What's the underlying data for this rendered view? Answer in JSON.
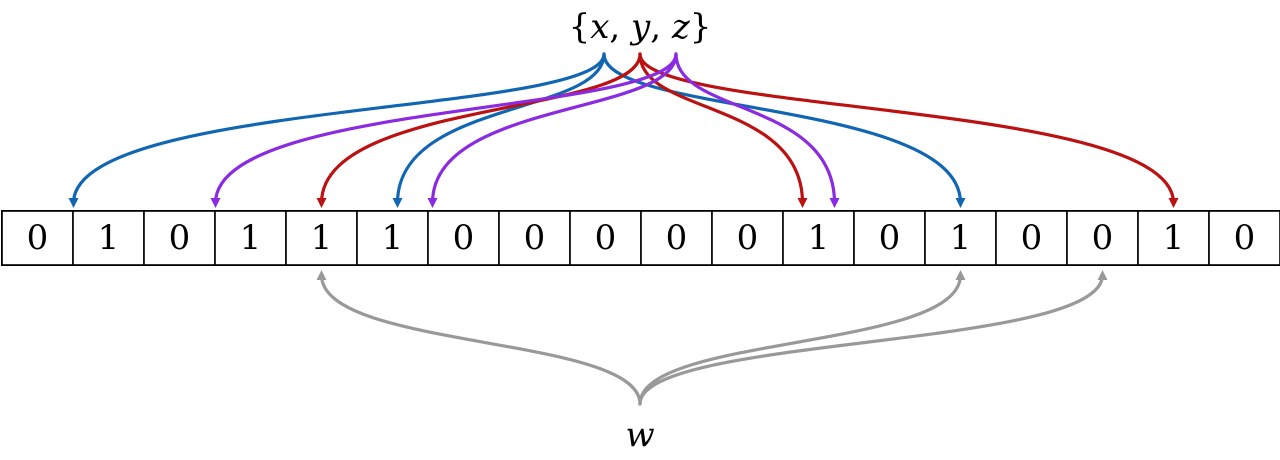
{
  "set_label": {
    "open": "{",
    "x": "x",
    "sep1": ", ",
    "y": "y",
    "sep2": ", ",
    "z": "z",
    "close": "}"
  },
  "query_label": "w",
  "bits": [
    "0",
    "1",
    "0",
    "1",
    "1",
    "1",
    "0",
    "0",
    "0",
    "0",
    "0",
    "1",
    "0",
    "1",
    "0",
    "0",
    "1",
    "0"
  ],
  "colors": {
    "x": "#1166b3",
    "y": "#bb1111",
    "z": "#8a2be2",
    "w": "#999999"
  },
  "mappings": {
    "x": [
      1,
      5,
      13
    ],
    "y": [
      4,
      11,
      16
    ],
    "z": [
      3,
      5,
      11
    ],
    "w": [
      4,
      13,
      15
    ]
  }
}
